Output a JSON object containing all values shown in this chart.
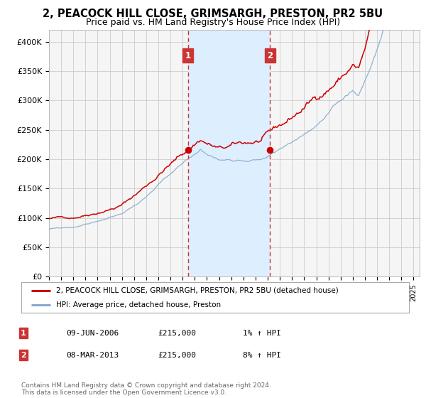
{
  "title": "2, PEACOCK HILL CLOSE, GRIMSARGH, PRESTON, PR2 5BU",
  "subtitle": "Price paid vs. HM Land Registry's House Price Index (HPI)",
  "ylim": [
    0,
    420000
  ],
  "yticks": [
    0,
    50000,
    100000,
    150000,
    200000,
    250000,
    300000,
    350000,
    400000
  ],
  "ytick_labels": [
    "£0",
    "£50K",
    "£100K",
    "£150K",
    "£200K",
    "£250K",
    "£300K",
    "£350K",
    "£400K"
  ],
  "xlim_start": 1995.0,
  "xlim_end": 2025.5,
  "sale1_date": 2006.44,
  "sale1_price": 215000,
  "sale2_date": 2013.18,
  "sale2_price": 215000,
  "line_color_property": "#cc0000",
  "line_color_hpi": "#88aacc",
  "background_color": "#ffffff",
  "plot_bg_color": "#f5f5f5",
  "grid_color": "#cccccc",
  "shaded_region_color": "#ddeeff",
  "dashed_line_color": "#cc3333",
  "annotation_box_color": "#cc3333",
  "legend_label_property": "2, PEACOCK HILL CLOSE, GRIMSARGH, PRESTON, PR2 5BU (detached house)",
  "legend_label_hpi": "HPI: Average price, detached house, Preston",
  "footnote": "Contains HM Land Registry data © Crown copyright and database right 2024.\nThis data is licensed under the Open Government Licence v3.0.",
  "table_row1": [
    "1",
    "09-JUN-2006",
    "£215,000",
    "1% ↑ HPI"
  ],
  "table_row2": [
    "2",
    "08-MAR-2013",
    "£215,000",
    "8% ↑ HPI"
  ],
  "title_fontsize": 10.5,
  "subtitle_fontsize": 9
}
